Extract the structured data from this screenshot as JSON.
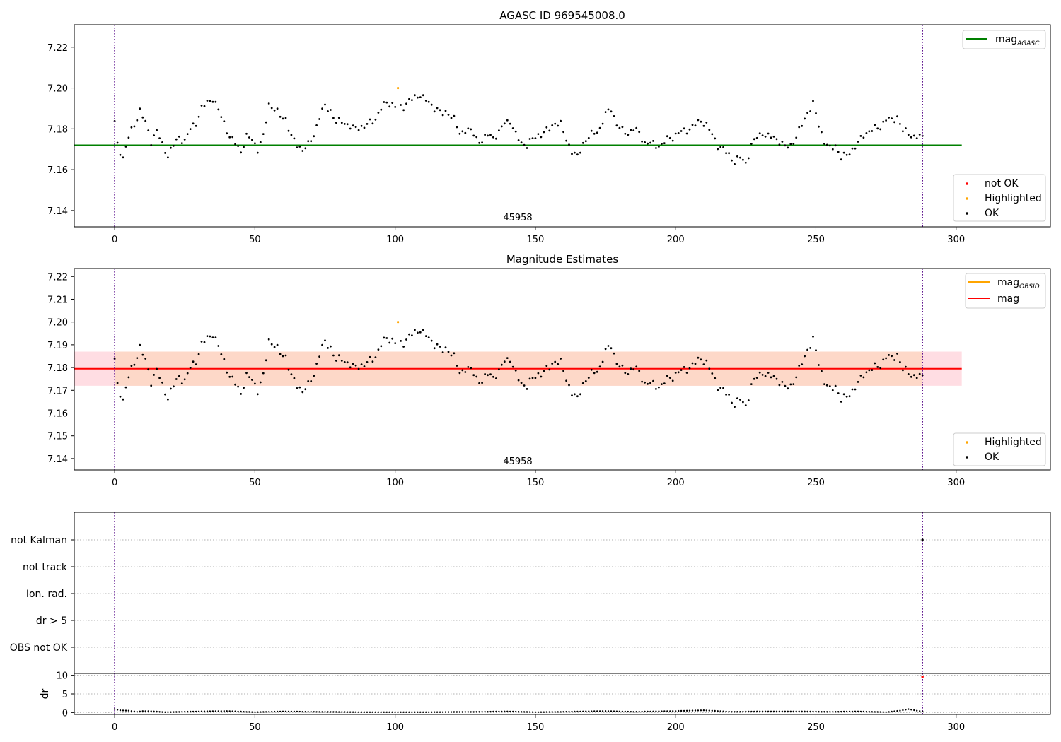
{
  "figure": {
    "title": "AGASC ID 969545008.0"
  },
  "chart_data": [
    {
      "id": "top",
      "type": "scatter",
      "title": "AGASC ID 969545008.0",
      "xlabel": "",
      "ylabel": "",
      "xlim": [
        -14.4,
        333.6
      ],
      "ylim": [
        7.132,
        7.231
      ],
      "xticks": [
        0,
        50,
        100,
        150,
        200,
        250,
        300
      ],
      "yticks": [
        7.14,
        7.16,
        7.18,
        7.2,
        7.22
      ],
      "ytick_labels": [
        "7.14",
        "7.16",
        "7.18",
        "7.20",
        "7.22"
      ],
      "annotation": "45958",
      "vlines": [
        0,
        288
      ],
      "hline": {
        "name": "mag_AGASC",
        "value": 7.172,
        "x_end": 302,
        "color": "#008000"
      },
      "legend_upper": [
        {
          "label": "mag",
          "sub": "AGASC",
          "color": "#008000"
        }
      ],
      "legend_lower": [
        {
          "label": "not OK",
          "color": "#ff0000"
        },
        {
          "label": "Highlighted",
          "color": "#ffa500"
        },
        {
          "label": "OK",
          "color": "#000000"
        }
      ],
      "highlighted": [
        {
          "x": 101,
          "y": 7.2
        }
      ],
      "series_ref": "mag_series"
    },
    {
      "id": "middle",
      "type": "scatter",
      "title": "Magnitude Estimates",
      "xlabel": "",
      "ylabel": "",
      "xlim": [
        -14.4,
        333.6
      ],
      "ylim": [
        7.135,
        7.2235
      ],
      "xticks": [
        0,
        50,
        100,
        150,
        200,
        250,
        300
      ],
      "yticks": [
        7.14,
        7.15,
        7.16,
        7.17,
        7.18,
        7.19,
        7.2,
        7.21,
        7.22
      ],
      "ytick_labels": [
        "7.14",
        "7.15",
        "7.16",
        "7.17",
        "7.18",
        "7.19",
        "7.20",
        "7.21",
        "7.22"
      ],
      "annotation": "45958",
      "vlines": [
        0,
        288
      ],
      "band_outer": {
        "low": 7.172,
        "high": 7.187,
        "x_end": 302,
        "color": "#ffdde3"
      },
      "band_inner": {
        "low": 7.172,
        "high": 7.187,
        "x_start": 0,
        "x_end": 288,
        "color": "#fdd8c8"
      },
      "hline": {
        "name": "mag",
        "value": 7.1795,
        "x_end": 302,
        "color": "#ff0000"
      },
      "legend_upper": [
        {
          "label": "mag",
          "sub": "OBSID",
          "color": "#ffa500"
        },
        {
          "label": "mag",
          "sub": "",
          "color": "#ff0000"
        }
      ],
      "legend_lower": [
        {
          "label": "Highlighted",
          "color": "#ffa500"
        },
        {
          "label": "OK",
          "color": "#000000"
        }
      ],
      "highlighted": [
        {
          "x": 101,
          "y": 7.2
        }
      ],
      "series_ref": "mag_series"
    },
    {
      "id": "flags",
      "type": "scatter",
      "xlim": [
        -14.4,
        333.6
      ],
      "categories": [
        "not Kalman",
        "not track",
        "Ion. rad.",
        "dr > 5",
        "OBS not OK"
      ],
      "vlines": [
        0,
        288
      ],
      "points": [
        {
          "x": 288,
          "category": "not Kalman"
        }
      ]
    },
    {
      "id": "dr",
      "type": "scatter",
      "ylabel": "dr",
      "xlim": [
        -14.4,
        333.6
      ],
      "ylim": [
        -0.5,
        10.5
      ],
      "xticks": [
        0,
        50,
        100,
        150,
        200,
        250,
        300
      ],
      "yticks": [
        0,
        5,
        10
      ],
      "ytick_labels": [
        "0",
        "5",
        "10"
      ],
      "vlines": [
        0,
        288
      ],
      "dr_outlier": {
        "x": 288,
        "y": 9.6
      },
      "dr_anchors": [
        [
          0,
          0.9
        ],
        [
          2,
          0.6
        ],
        [
          5,
          0.5
        ],
        [
          8,
          0.2
        ],
        [
          10,
          0.4
        ],
        [
          14,
          0.3
        ],
        [
          18,
          0.1
        ],
        [
          30,
          0.3
        ],
        [
          40,
          0.4
        ],
        [
          50,
          0.1
        ],
        [
          60,
          0.3
        ],
        [
          70,
          0.2
        ],
        [
          90,
          0.1
        ],
        [
          110,
          0.1
        ],
        [
          130,
          0.2
        ],
        [
          140,
          0.3
        ],
        [
          150,
          0.1
        ],
        [
          160,
          0.2
        ],
        [
          175,
          0.4
        ],
        [
          185,
          0.2
        ],
        [
          200,
          0.4
        ],
        [
          210,
          0.6
        ],
        [
          220,
          0.2
        ],
        [
          230,
          0.3
        ],
        [
          245,
          0.3
        ],
        [
          255,
          0.2
        ],
        [
          265,
          0.3
        ],
        [
          275,
          0.1
        ],
        [
          280,
          0.5
        ],
        [
          283,
          0.9
        ],
        [
          286,
          0.5
        ],
        [
          288,
          0.3
        ]
      ]
    }
  ],
  "mag_series": {
    "name": "OK",
    "count": 289,
    "anchors": [
      [
        0,
        7.183
      ],
      [
        1,
        7.172
      ],
      [
        3,
        7.166
      ],
      [
        5,
        7.176
      ],
      [
        7,
        7.182
      ],
      [
        9,
        7.189
      ],
      [
        11,
        7.183
      ],
      [
        13,
        7.174
      ],
      [
        15,
        7.179
      ],
      [
        17,
        7.172
      ],
      [
        19,
        7.167
      ],
      [
        21,
        7.172
      ],
      [
        23,
        7.176
      ],
      [
        25,
        7.174
      ],
      [
        27,
        7.18
      ],
      [
        29,
        7.183
      ],
      [
        31,
        7.19
      ],
      [
        33,
        7.193
      ],
      [
        35,
        7.195
      ],
      [
        37,
        7.189
      ],
      [
        39,
        7.183
      ],
      [
        41,
        7.176
      ],
      [
        43,
        7.173
      ],
      [
        45,
        7.169
      ],
      [
        47,
        7.176
      ],
      [
        49,
        7.175
      ],
      [
        51,
        7.17
      ],
      [
        53,
        7.176
      ],
      [
        55,
        7.192
      ],
      [
        57,
        7.19
      ],
      [
        59,
        7.186
      ],
      [
        61,
        7.185
      ],
      [
        63,
        7.176
      ],
      [
        65,
        7.172
      ],
      [
        67,
        7.17
      ],
      [
        69,
        7.172
      ],
      [
        71,
        7.177
      ],
      [
        73,
        7.186
      ],
      [
        75,
        7.191
      ],
      [
        77,
        7.189
      ],
      [
        79,
        7.183
      ],
      [
        81,
        7.184
      ],
      [
        83,
        7.182
      ],
      [
        85,
        7.18
      ],
      [
        87,
        7.181
      ],
      [
        89,
        7.181
      ],
      [
        91,
        7.183
      ],
      [
        93,
        7.185
      ],
      [
        95,
        7.19
      ],
      [
        97,
        7.193
      ],
      [
        99,
        7.192
      ],
      [
        101,
        7.19
      ],
      [
        103,
        7.191
      ],
      [
        105,
        7.194
      ],
      [
        107,
        7.195
      ],
      [
        109,
        7.197
      ],
      [
        111,
        7.194
      ],
      [
        113,
        7.191
      ],
      [
        115,
        7.19
      ],
      [
        117,
        7.187
      ],
      [
        119,
        7.188
      ],
      [
        121,
        7.185
      ],
      [
        123,
        7.177
      ],
      [
        125,
        7.18
      ],
      [
        127,
        7.179
      ],
      [
        129,
        7.175
      ],
      [
        131,
        7.174
      ],
      [
        133,
        7.177
      ],
      [
        135,
        7.176
      ],
      [
        137,
        7.178
      ],
      [
        139,
        7.183
      ],
      [
        141,
        7.184
      ],
      [
        143,
        7.177
      ],
      [
        145,
        7.173
      ],
      [
        147,
        7.172
      ],
      [
        149,
        7.175
      ],
      [
        151,
        7.177
      ],
      [
        153,
        7.178
      ],
      [
        155,
        7.18
      ],
      [
        157,
        7.183
      ],
      [
        159,
        7.182
      ],
      [
        161,
        7.175
      ],
      [
        163,
        7.169
      ],
      [
        165,
        7.166
      ],
      [
        167,
        7.173
      ],
      [
        169,
        7.176
      ],
      [
        171,
        7.178
      ],
      [
        173,
        7.18
      ],
      [
        175,
        7.187
      ],
      [
        177,
        7.19
      ],
      [
        179,
        7.182
      ],
      [
        181,
        7.179
      ],
      [
        183,
        7.178
      ],
      [
        185,
        7.18
      ],
      [
        187,
        7.178
      ],
      [
        189,
        7.173
      ],
      [
        191,
        7.173
      ],
      [
        193,
        7.172
      ],
      [
        195,
        7.172
      ],
      [
        197,
        7.175
      ],
      [
        199,
        7.176
      ],
      [
        201,
        7.178
      ],
      [
        203,
        7.179
      ],
      [
        205,
        7.18
      ],
      [
        207,
        7.182
      ],
      [
        209,
        7.184
      ],
      [
        211,
        7.182
      ],
      [
        213,
        7.177
      ],
      [
        215,
        7.172
      ],
      [
        217,
        7.17
      ],
      [
        219,
        7.167
      ],
      [
        221,
        7.164
      ],
      [
        223,
        7.166
      ],
      [
        225,
        7.163
      ],
      [
        227,
        7.172
      ],
      [
        229,
        7.176
      ],
      [
        231,
        7.178
      ],
      [
        233,
        7.176
      ],
      [
        235,
        7.176
      ],
      [
        237,
        7.174
      ],
      [
        239,
        7.171
      ],
      [
        241,
        7.172
      ],
      [
        243,
        7.176
      ],
      [
        245,
        7.182
      ],
      [
        247,
        7.188
      ],
      [
        249,
        7.192
      ],
      [
        251,
        7.182
      ],
      [
        253,
        7.174
      ],
      [
        255,
        7.17
      ],
      [
        257,
        7.172
      ],
      [
        259,
        7.166
      ],
      [
        261,
        7.167
      ],
      [
        263,
        7.17
      ],
      [
        265,
        7.173
      ],
      [
        267,
        7.177
      ],
      [
        269,
        7.179
      ],
      [
        271,
        7.18
      ],
      [
        273,
        7.181
      ],
      [
        275,
        7.185
      ],
      [
        277,
        7.184
      ],
      [
        279,
        7.186
      ],
      [
        281,
        7.179
      ],
      [
        283,
        7.178
      ],
      [
        285,
        7.176
      ],
      [
        287,
        7.176
      ],
      [
        288,
        7.176
      ]
    ]
  }
}
